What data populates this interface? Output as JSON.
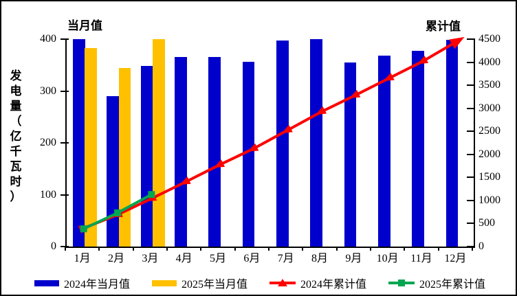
{
  "chart_data": {
    "type": "combo-bar-line",
    "categories": [
      "1月",
      "2月",
      "3月",
      "4月",
      "5月",
      "6月",
      "7月",
      "8月",
      "9月",
      "10月",
      "11月",
      "12月"
    ],
    "series": [
      {
        "name": "2024年当月值",
        "type": "bar",
        "axis": "left",
        "color": "#0000CC",
        "marker": "rect",
        "values": [
          400,
          290,
          348,
          366,
          366,
          356,
          398,
          400,
          355,
          368,
          377,
          399
        ]
      },
      {
        "name": "2025年当月值",
        "type": "bar",
        "axis": "left",
        "color": "#FFC000",
        "marker": "rect",
        "values": [
          383,
          345,
          400,
          null,
          null,
          null,
          null,
          null,
          null,
          null,
          null,
          null
        ]
      },
      {
        "name": "2024年累计值",
        "type": "line",
        "axis": "right",
        "color": "#FF0000",
        "marker": "triangle",
        "arrow_end": true,
        "values": [
          400,
          690,
          1040,
          1400,
          1770,
          2120,
          2520,
          2920,
          3280,
          3650,
          4020,
          4450
        ]
      },
      {
        "name": "2025年累计值",
        "type": "line",
        "axis": "right",
        "color": "#00A651",
        "marker": "square",
        "arrow_end": false,
        "values": [
          385,
          730,
          1130,
          null,
          null,
          null,
          null,
          null,
          null,
          null,
          null,
          null
        ]
      }
    ],
    "left_axis": {
      "title": "发电量（亿千瓦时）",
      "min": 0,
      "max": 400,
      "step": 100,
      "ticks": [
        0,
        100,
        200,
        300,
        400
      ]
    },
    "right_axis": {
      "min": 0,
      "max": 4500,
      "step": 500,
      "ticks": [
        0,
        500,
        1000,
        1500,
        2000,
        2500,
        3000,
        3500,
        4000,
        4500
      ]
    },
    "labels": {
      "left_header": "当月值",
      "right_header": "累计值"
    },
    "layout_hints": {
      "grid": false,
      "legend_position": "bottom",
      "axis_color": "#000000",
      "background": "#FFFFFF"
    }
  }
}
